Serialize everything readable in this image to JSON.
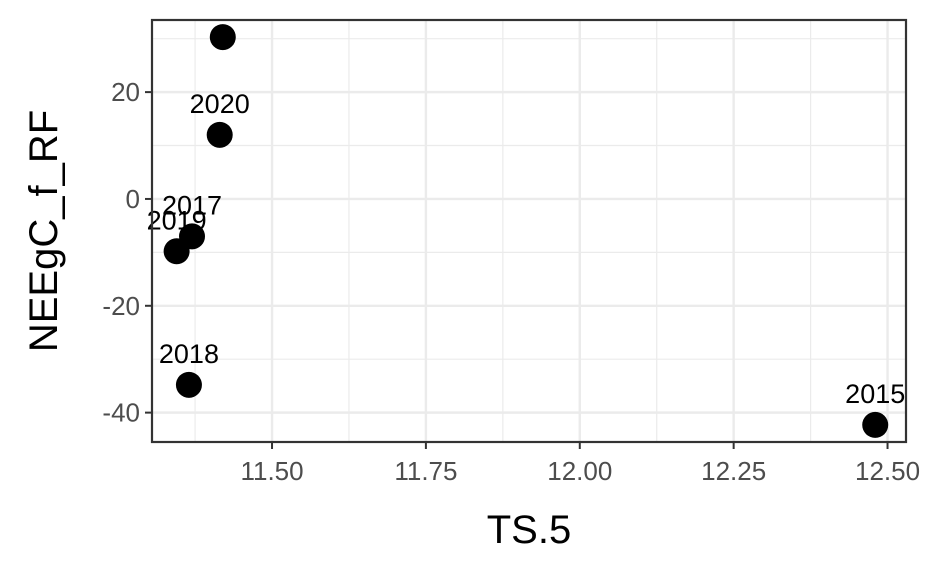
{
  "chart_data": {
    "type": "scatter",
    "title": "",
    "xlabel": "TS.5",
    "ylabel": "NEEgC_f_RF",
    "xlim": [
      11.305,
      12.53
    ],
    "ylim": [
      -45.5,
      33.5
    ],
    "grid": true,
    "legend": "none",
    "x_ticks": [
      11.5,
      11.75,
      12.0,
      12.25,
      12.5
    ],
    "x_tick_labels": [
      "11.50",
      "11.75",
      "12.00",
      "12.25",
      "12.50"
    ],
    "y_ticks": [
      -40,
      -20,
      0,
      20
    ],
    "y_tick_labels": [
      "-40",
      "-20",
      "0",
      "20"
    ],
    "points": [
      {
        "label": "",
        "x": 11.42,
        "y": 30.3
      },
      {
        "label": "2020",
        "x": 11.415,
        "y": 12.0
      },
      {
        "label": "2017",
        "x": 11.37,
        "y": -7.0
      },
      {
        "label": "2019",
        "x": 11.345,
        "y": -9.8
      },
      {
        "label": "2018",
        "x": 11.365,
        "y": -34.8
      },
      {
        "label": "2015",
        "x": 12.48,
        "y": -42.3
      }
    ],
    "colors": {
      "point": "#000000",
      "panel_border": "#333333",
      "grid": "#ebebeb",
      "tick_text": "#4d4d4d"
    }
  }
}
